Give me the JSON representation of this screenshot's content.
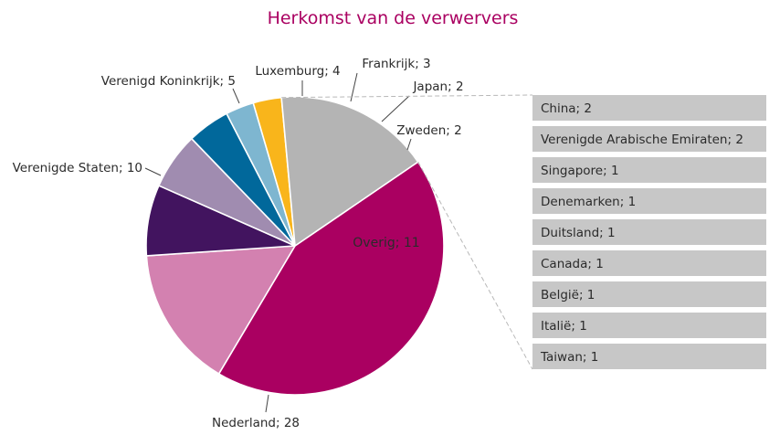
{
  "chart_data": {
    "type": "pie",
    "title": "Herkomst van de verwervers",
    "slices": [
      {
        "label": "Nederland; 28",
        "name": "Nederland",
        "value": 28,
        "color": "#aa0061"
      },
      {
        "label": "Verenigde Staten; 10",
        "name": "Verenigde Staten",
        "value": 10,
        "color": "#d381b0"
      },
      {
        "label": "Verenigd Koninkrijk; 5",
        "name": "Verenigd Koninkrijk",
        "value": 5,
        "color": "#42145f"
      },
      {
        "label": "Luxemburg; 4",
        "name": "Luxemburg",
        "value": 4,
        "color": "#a08cb0"
      },
      {
        "label": "Frankrijk; 3",
        "name": "Frankrijk",
        "value": 3,
        "color": "#01689b"
      },
      {
        "label": "Japan; 2",
        "name": "Japan",
        "value": 2,
        "color": "#7eb6d0"
      },
      {
        "label": "Zweden; 2",
        "name": "Zweden",
        "value": 2,
        "color": "#f9b51b"
      },
      {
        "label": "Overig; 11",
        "name": "Overig",
        "value": 11,
        "color": "#b4b4b4"
      }
    ],
    "breakdown": {
      "of": "Overig",
      "items": [
        {
          "label": "China; 2",
          "name": "China",
          "value": 2
        },
        {
          "label": "Verenigde Arabische Emiraten; 2",
          "name": "Verenigde Arabische Emiraten",
          "value": 2
        },
        {
          "label": "Singapore; 1",
          "name": "Singapore",
          "value": 1
        },
        {
          "label": "Denemarken; 1",
          "name": "Denemarken",
          "value": 1
        },
        {
          "label": "Duitsland; 1",
          "name": "Duitsland",
          "value": 1
        },
        {
          "label": "Canada; 1",
          "name": "Canada",
          "value": 1
        },
        {
          "label": "België; 1",
          "name": "België",
          "value": 1
        },
        {
          "label": "Italië; 1",
          "name": "Italië",
          "value": 1
        },
        {
          "label": "Taiwan; 1",
          "name": "Taiwan",
          "value": 1
        }
      ]
    },
    "colors": {
      "title": "#aa0061",
      "breakdown_box": "#c7c7c7",
      "connector": "#b8b8b8",
      "leader": "#444444"
    }
  }
}
